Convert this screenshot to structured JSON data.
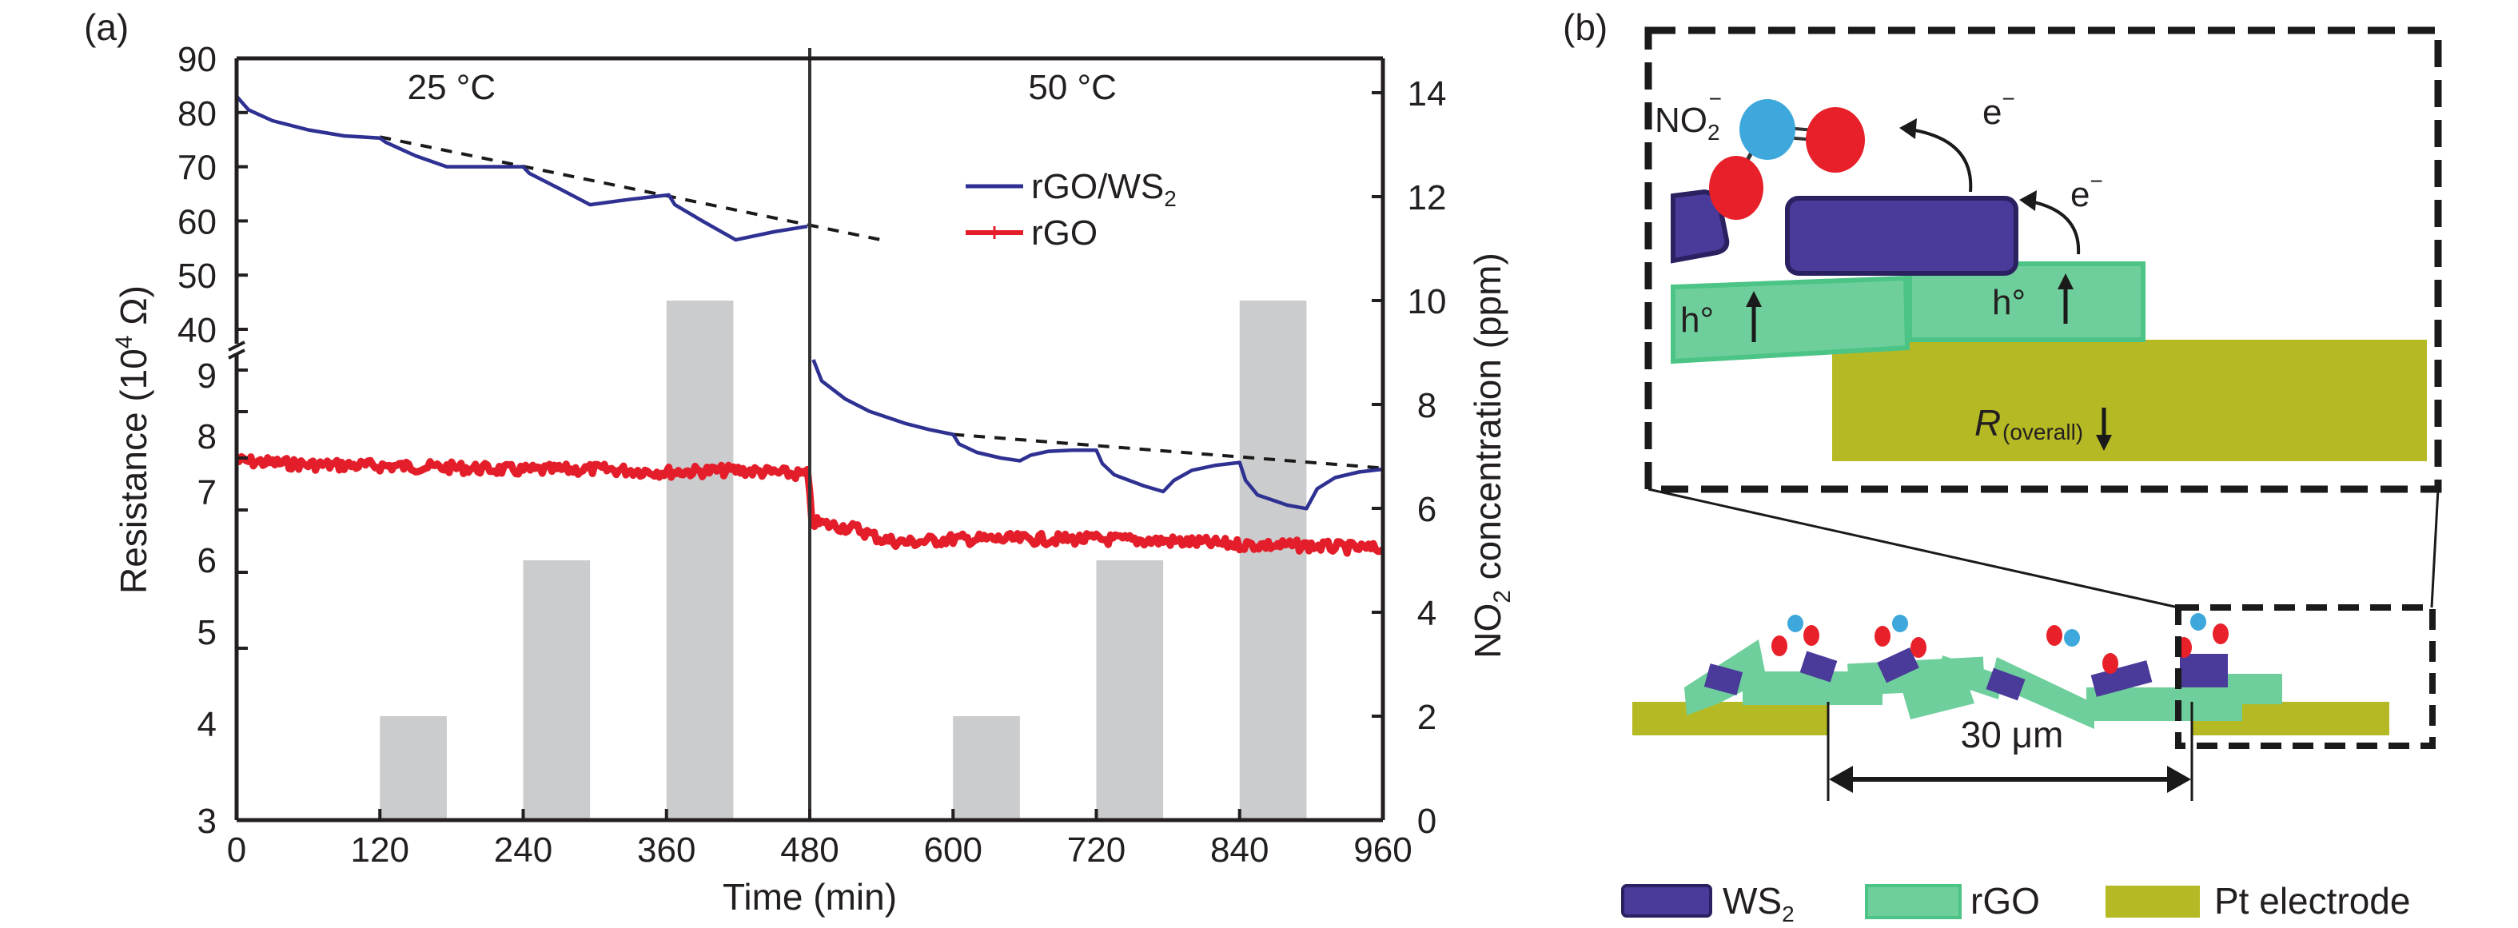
{
  "panel_a_label": "(a)",
  "panel_b_label": "(b)",
  "chart_data": {
    "type": "line",
    "title": "",
    "xlabel": "Time (min)",
    "ylabel": "Resistance (10⁴ Ω)",
    "ylabel_parts": {
      "base": "Resistance (10",
      "sup": "4",
      "tail": " Ω)"
    },
    "y2label_parts": {
      "pre": "NO",
      "sub": "2",
      "post": " concentration (ppm)"
    },
    "xlim": [
      0,
      960
    ],
    "x_ticks": [
      0,
      120,
      240,
      360,
      480,
      600,
      720,
      840,
      960
    ],
    "y_upper_ticks": [
      90,
      80,
      70,
      60,
      50,
      40
    ],
    "y_lower_ticks": [
      9,
      8,
      7,
      6,
      5,
      4,
      3
    ],
    "y_axis_break": "between 40 and 9",
    "y2lim": [
      0,
      14
    ],
    "y2_ticks": [
      0,
      2,
      4,
      6,
      8,
      10,
      12,
      14
    ],
    "annotations": [
      {
        "text": "25 °C",
        "x": 180
      },
      {
        "text": "50 °C",
        "x": 700
      }
    ],
    "divider_x": 480,
    "legend": {
      "placement": "top-right-center",
      "entries": [
        {
          "name": "rGO/WS",
          "sub": "2",
          "color": "#2e3192"
        },
        {
          "name": "rGO",
          "sub": "",
          "color": "#e31e2a"
        }
      ]
    },
    "bars": {
      "name": "NO2 concentration (ppm)",
      "color": "#cbcccd",
      "axis": "right",
      "items": [
        {
          "start": 120,
          "end": 176,
          "value": 2
        },
        {
          "start": 240,
          "end": 296,
          "value": 5
        },
        {
          "start": 360,
          "end": 416,
          "value": 10
        },
        {
          "start": 600,
          "end": 656,
          "value": 2
        },
        {
          "start": 720,
          "end": 776,
          "value": 5
        },
        {
          "start": 840,
          "end": 896,
          "value": 10
        }
      ]
    },
    "series": [
      {
        "name": "rGO/WS2",
        "color": "#2e3192",
        "segment": "upper",
        "x": [
          0,
          10,
          30,
          60,
          90,
          120,
          125,
          150,
          176,
          200,
          240,
          245,
          270,
          296,
          330,
          362,
          367,
          390,
          418,
          450,
          478
        ],
        "y": [
          83,
          80.5,
          78.5,
          76.8,
          75.7,
          75.3,
          74.5,
          72,
          70,
          70,
          70,
          68.8,
          66,
          63,
          64,
          64.8,
          63,
          60,
          56.5,
          58,
          59
        ]
      },
      {
        "name": "rGO/WS2",
        "color": "#2e3192",
        "segment": "lower",
        "x": [
          483,
          490,
          510,
          530,
          560,
          580,
          600,
          605,
          620,
          640,
          656,
          665,
          680,
          700,
          720,
          725,
          735,
          760,
          776,
          785,
          800,
          820,
          840,
          845,
          855,
          880,
          896,
          905,
          920,
          940,
          960
        ],
        "y": [
          9.25,
          8.9,
          8.6,
          8.4,
          8.2,
          8.1,
          8.02,
          7.85,
          7.7,
          7.6,
          7.55,
          7.65,
          7.72,
          7.74,
          7.74,
          7.5,
          7.3,
          7.1,
          7.0,
          7.2,
          7.38,
          7.47,
          7.52,
          7.2,
          6.95,
          6.8,
          6.75,
          7.05,
          7.25,
          7.35,
          7.4
        ]
      },
      {
        "name": "rGO",
        "color": "#e31e2a",
        "segment": "lower",
        "x": [
          0,
          60,
          120,
          180,
          240,
          300,
          360,
          420,
          478,
          482,
          500,
          520,
          540,
          560,
          600,
          660,
          720,
          780,
          840,
          900,
          960
        ],
        "y": [
          7.55,
          7.48,
          7.46,
          7.43,
          7.38,
          7.4,
          7.35,
          7.38,
          7.3,
          6.55,
          6.5,
          6.45,
          6.3,
          6.25,
          6.3,
          6.3,
          6.3,
          6.27,
          6.22,
          6.2,
          6.15
        ]
      }
    ],
    "baselines": [
      {
        "segment": "upper",
        "x": [
          120,
          540
        ],
        "y": [
          75.5,
          56.5
        ],
        "style": "dashed"
      },
      {
        "segment": "lower",
        "x": [
          600,
          960
        ],
        "y": [
          8.02,
          7.42
        ],
        "style": "dashed"
      }
    ]
  },
  "diagram": {
    "inset": {
      "labels": {
        "no2": "NO",
        "no2_sub": "2",
        "no2_sup": "−",
        "electron1": "e",
        "electron1_sup": "−",
        "electron2": "e",
        "electron2_sup": "−",
        "hole_left": "h°",
        "hole_right": "h°",
        "resistance": "R",
        "resistance_sub": "(overall)"
      }
    },
    "gap_label": "30 μm",
    "legend": [
      {
        "name": "WS",
        "sub": "2",
        "color": "#4a3b9b"
      },
      {
        "name": "rGO",
        "sub": "",
        "color": "#6fcf9c"
      },
      {
        "name": "Pt electrode",
        "sub": "",
        "color": "#b5b923"
      }
    ],
    "colors": {
      "ws2": "#4a3b9b",
      "ws2_border": "#2a2160",
      "rgo": "#6fcf9c",
      "rgo_border": "#4cc486",
      "pt": "#b5b923",
      "nitrogen": "#3ea8dc",
      "oxygen": "#e8202a"
    }
  }
}
